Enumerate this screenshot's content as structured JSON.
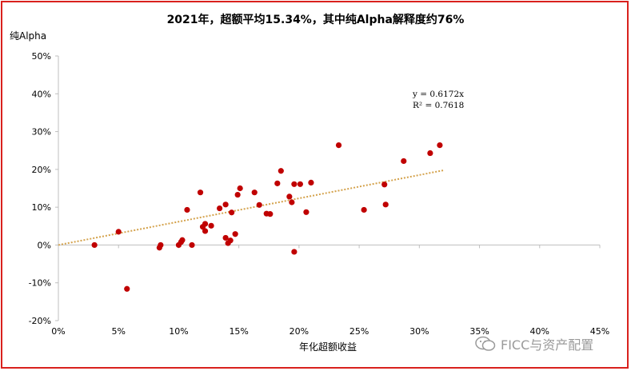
{
  "title": "2021年，超额平均15.34%，其中纯Alpha解释度约76%",
  "watermark": "FICC与资产配置",
  "colors": {
    "frame": "#d9211d",
    "points": "#c00000",
    "trend": "#d4a24c",
    "axis": "#bfbfbf"
  },
  "chart_data": {
    "type": "scatter",
    "title": "2021年，超额平均15.34%，其中纯Alpha解释度约76%",
    "xlabel": "年化超额收益",
    "ylabel": "纯Alpha",
    "xlim": [
      0,
      45
    ],
    "ylim": [
      -20,
      50
    ],
    "x_ticks": [
      0,
      5,
      10,
      15,
      20,
      25,
      30,
      35,
      40,
      45
    ],
    "y_ticks": [
      -20,
      -10,
      0,
      10,
      20,
      30,
      40,
      50
    ],
    "x_tick_labels": [
      "0%",
      "5%",
      "10%",
      "15%",
      "20%",
      "25%",
      "30%",
      "35%",
      "40%",
      "45%"
    ],
    "y_tick_labels": [
      "-20%",
      "-10%",
      "0%",
      "10%",
      "20%",
      "30%",
      "40%",
      "50%"
    ],
    "grid": false,
    "trendline": {
      "type": "linear",
      "slope": 0.6172,
      "x_range": [
        0,
        32
      ],
      "equation": "y = 0.6172x",
      "r_squared": "R² = 0.7618"
    },
    "points": [
      {
        "x": 3.0,
        "y": 0.0
      },
      {
        "x": 5.0,
        "y": 3.5
      },
      {
        "x": 5.7,
        "y": -11.6
      },
      {
        "x": 8.4,
        "y": -0.7
      },
      {
        "x": 8.5,
        "y": 0.0
      },
      {
        "x": 10.0,
        "y": 0.0
      },
      {
        "x": 10.2,
        "y": 0.8
      },
      {
        "x": 10.3,
        "y": 1.3
      },
      {
        "x": 10.7,
        "y": 9.3
      },
      {
        "x": 11.1,
        "y": 0.0
      },
      {
        "x": 11.8,
        "y": 13.9
      },
      {
        "x": 12.0,
        "y": 4.8
      },
      {
        "x": 12.2,
        "y": 3.7
      },
      {
        "x": 12.2,
        "y": 5.6
      },
      {
        "x": 12.7,
        "y": 5.1
      },
      {
        "x": 13.4,
        "y": 9.7
      },
      {
        "x": 13.9,
        "y": 10.7
      },
      {
        "x": 13.9,
        "y": 1.9
      },
      {
        "x": 14.1,
        "y": 0.5
      },
      {
        "x": 14.3,
        "y": 1.2
      },
      {
        "x": 14.4,
        "y": 8.6
      },
      {
        "x": 14.7,
        "y": 2.9
      },
      {
        "x": 14.9,
        "y": 13.3
      },
      {
        "x": 15.1,
        "y": 15.0
      },
      {
        "x": 16.3,
        "y": 13.9
      },
      {
        "x": 16.7,
        "y": 10.6
      },
      {
        "x": 17.3,
        "y": 8.3
      },
      {
        "x": 17.6,
        "y": 8.2
      },
      {
        "x": 18.2,
        "y": 16.3
      },
      {
        "x": 18.5,
        "y": 19.6
      },
      {
        "x": 19.2,
        "y": 12.8
      },
      {
        "x": 19.4,
        "y": 11.3
      },
      {
        "x": 19.6,
        "y": 16.1
      },
      {
        "x": 19.6,
        "y": -1.8
      },
      {
        "x": 20.1,
        "y": 16.1
      },
      {
        "x": 20.6,
        "y": 8.7
      },
      {
        "x": 21.0,
        "y": 16.5
      },
      {
        "x": 23.3,
        "y": 26.4
      },
      {
        "x": 25.4,
        "y": 9.3
      },
      {
        "x": 27.1,
        "y": 16.0
      },
      {
        "x": 27.2,
        "y": 10.7
      },
      {
        "x": 28.7,
        "y": 22.2
      },
      {
        "x": 30.9,
        "y": 24.3
      },
      {
        "x": 31.7,
        "y": 26.4
      }
    ]
  }
}
